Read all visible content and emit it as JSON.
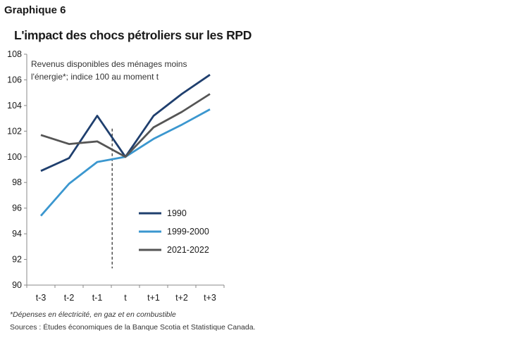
{
  "figure_label": "Graphique 6",
  "footnote": "*Dépenses en électricité, en gaz et en combustible",
  "source": "Sources : Études économiques de la Banque Scotia et Statistique Canada.",
  "chart_data": {
    "type": "line",
    "title": "L'impact des chocs pétroliers sur les RPD",
    "annotation_lines": [
      "Revenus disponibles des ménages moins",
      "l'énergie*; indice 100 au moment t"
    ],
    "xlabel": "",
    "ylabel": "",
    "categories": [
      "t-3",
      "t-2",
      "t-1",
      "t",
      "t+1",
      "t+2",
      "t+3"
    ],
    "ylim": [
      90,
      108
    ],
    "yticks": [
      90,
      92,
      94,
      96,
      98,
      100,
      102,
      104,
      106,
      108
    ],
    "vertical_marker_at": "t",
    "grid": false,
    "legend_position": "lower-right",
    "series": [
      {
        "name": "1990",
        "color": "#1f3f6e",
        "values": [
          98.9,
          99.9,
          103.2,
          100.0,
          103.2,
          104.9,
          106.4
        ]
      },
      {
        "name": "1999-2000",
        "color": "#3b97cf",
        "values": [
          95.4,
          97.9,
          99.6,
          100.0,
          101.4,
          102.5,
          103.7
        ]
      },
      {
        "name": "2021-2022",
        "color": "#555555",
        "values": [
          101.7,
          101.0,
          101.2,
          100.0,
          102.3,
          103.5,
          104.9
        ]
      }
    ]
  }
}
